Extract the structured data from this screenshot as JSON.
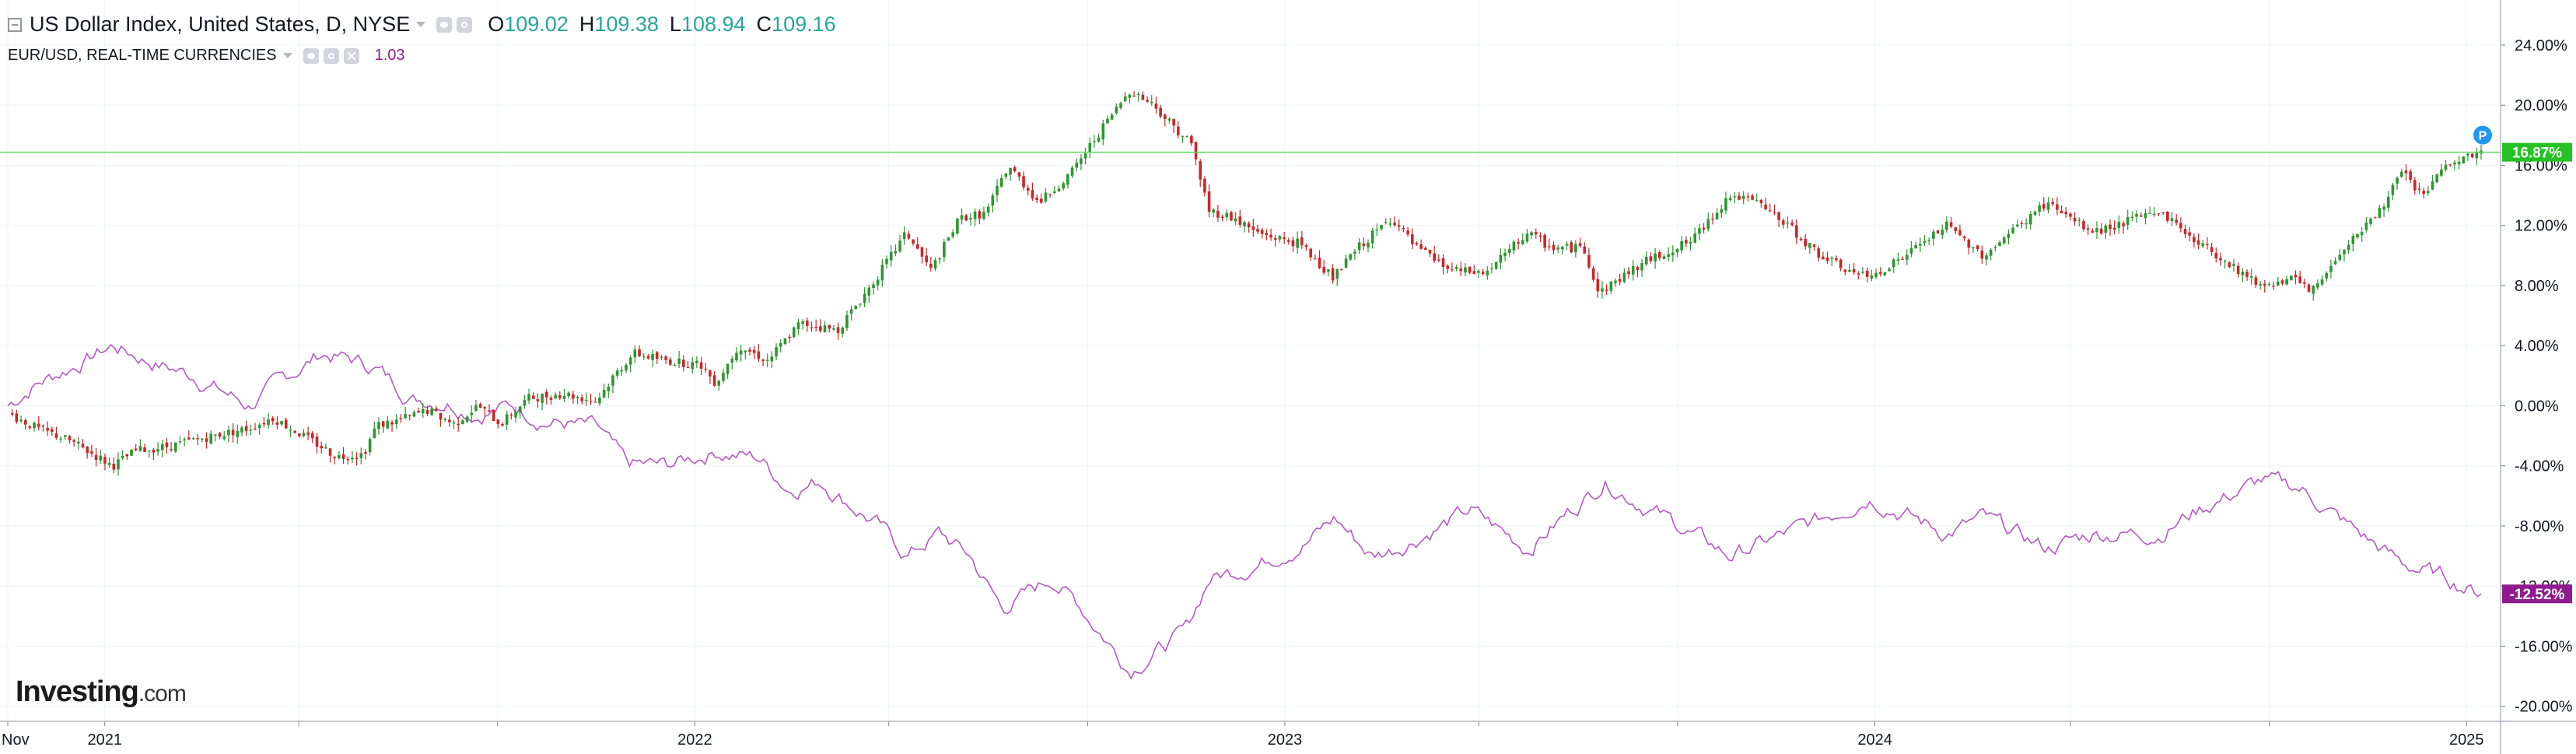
{
  "legend": {
    "main_title": "US Dollar Index, United States, D, NYSE",
    "o_label": "O",
    "o_value": "109.02",
    "h_label": "H",
    "h_value": "109.38",
    "l_label": "L",
    "l_value": "108.94",
    "c_label": "C",
    "c_value": "109.16",
    "compare_title": "EUR/USD, REAL-TIME CURRENCIES",
    "compare_value": "1.03"
  },
  "logo": {
    "text": "Investing",
    "suffix": ".com"
  },
  "colors": {
    "up": "#2e9632",
    "down": "#c62828",
    "compare_line": "#b35bc0",
    "current_line": "#5ed85e",
    "dxy_badge": "#24c224",
    "eur_badge": "#8e1c8e",
    "marker": "#2196f3",
    "grid": "#f0f3fa",
    "axis": "#787b86"
  },
  "chart_data": {
    "type": "line",
    "y_axis": {
      "unit": "%",
      "range": [
        -21,
        27
      ],
      "ticks": [
        24,
        20,
        16,
        12,
        8,
        4,
        0,
        -4,
        -8,
        -12,
        -16,
        -20
      ],
      "tick_labels": [
        "24.00%",
        "20.00%",
        "16.00%",
        "12.00%",
        "8.00%",
        "4.00%",
        "0.00%",
        "-4.00%",
        "-8.00%",
        "-12.00%",
        "-16.00%",
        "-20.00%"
      ]
    },
    "x_axis": {
      "range": [
        "2020-11-02",
        "2025-01-10"
      ],
      "ticks": [
        "2020-11-02",
        "2021-01-01",
        "2022-01-01",
        "2023-01-01",
        "2024-01-01",
        "2025-01-01"
      ],
      "tick_labels": [
        "Nov",
        "2021",
        "2022",
        "2023",
        "2024",
        "2025"
      ],
      "minor_ticks": [
        "2021-05-01",
        "2021-09-01",
        "2022-05-01",
        "2022-09-01",
        "2023-05-01",
        "2023-09-01",
        "2024-05-01",
        "2024-09-01"
      ]
    },
    "series": [
      {
        "name": "US Dollar Index",
        "style": "candlestick",
        "points": [
          [
            "2020-11-02",
            -0.5
          ],
          [
            "2020-11-20",
            -1.5
          ],
          [
            "2020-12-10",
            -2.3
          ],
          [
            "2021-01-06",
            -4.0
          ],
          [
            "2021-01-20",
            -3.0
          ],
          [
            "2021-02-10",
            -2.7
          ],
          [
            "2021-03-01",
            -2.2
          ],
          [
            "2021-03-31",
            -1.5
          ],
          [
            "2021-04-15",
            -0.8
          ],
          [
            "2021-05-10",
            -2.4
          ],
          [
            "2021-05-25",
            -3.4
          ],
          [
            "2021-06-10",
            -3.2
          ],
          [
            "2021-06-18",
            -1.3
          ],
          [
            "2021-07-01",
            -1.0
          ],
          [
            "2021-07-20",
            -0.3
          ],
          [
            "2021-08-05",
            -1.2
          ],
          [
            "2021-08-20",
            0.0
          ],
          [
            "2021-09-03",
            -1.2
          ],
          [
            "2021-09-20",
            0.5
          ],
          [
            "2021-10-12",
            0.8
          ],
          [
            "2021-11-01",
            0.3
          ],
          [
            "2021-11-12",
            2.0
          ],
          [
            "2021-11-24",
            3.5
          ],
          [
            "2021-12-15",
            3.0
          ],
          [
            "2022-01-05",
            2.7
          ],
          [
            "2022-01-14",
            1.5
          ],
          [
            "2022-01-28",
            4.0
          ],
          [
            "2022-02-15",
            3.0
          ],
          [
            "2022-03-07",
            5.5
          ],
          [
            "2022-03-30",
            5.0
          ],
          [
            "2022-04-20",
            8.0
          ],
          [
            "2022-05-12",
            11.5
          ],
          [
            "2022-05-27",
            9.0
          ],
          [
            "2022-06-14",
            12.5
          ],
          [
            "2022-06-30",
            12.8
          ],
          [
            "2022-07-14",
            16.0
          ],
          [
            "2022-08-02",
            13.5
          ],
          [
            "2022-08-22",
            15.5
          ],
          [
            "2022-09-07",
            18.0
          ],
          [
            "2022-09-27",
            21.0
          ],
          [
            "2022-10-12",
            20.0
          ],
          [
            "2022-10-25",
            18.5
          ],
          [
            "2022-11-04",
            17.5
          ],
          [
            "2022-11-15",
            13.0
          ],
          [
            "2022-11-30",
            12.5
          ],
          [
            "2022-12-15",
            11.5
          ],
          [
            "2023-01-10",
            10.8
          ],
          [
            "2023-01-31",
            8.5
          ],
          [
            "2023-02-15",
            10.5
          ],
          [
            "2023-03-08",
            12.5
          ],
          [
            "2023-03-23",
            10.5
          ],
          [
            "2023-04-14",
            9.0
          ],
          [
            "2023-05-05",
            8.8
          ],
          [
            "2023-05-31",
            11.5
          ],
          [
            "2023-06-15",
            10.5
          ],
          [
            "2023-07-05",
            10.5
          ],
          [
            "2023-07-14",
            7.5
          ],
          [
            "2023-08-10",
            9.5
          ],
          [
            "2023-09-10",
            11.0
          ],
          [
            "2023-10-03",
            14.0
          ],
          [
            "2023-10-20",
            13.5
          ],
          [
            "2023-11-08",
            12.0
          ],
          [
            "2023-11-28",
            10.0
          ],
          [
            "2023-12-15",
            9.0
          ],
          [
            "2023-12-28",
            8.5
          ],
          [
            "2024-01-20",
            10.0
          ],
          [
            "2024-02-14",
            12.0
          ],
          [
            "2024-03-08",
            10.0
          ],
          [
            "2024-04-16",
            13.5
          ],
          [
            "2024-05-15",
            11.5
          ],
          [
            "2024-06-25",
            13.0
          ],
          [
            "2024-07-17",
            11.0
          ],
          [
            "2024-08-27",
            8.0
          ],
          [
            "2024-09-15",
            8.5
          ],
          [
            "2024-09-27",
            7.5
          ],
          [
            "2024-10-20",
            11.0
          ],
          [
            "2024-11-05",
            12.5
          ],
          [
            "2024-11-22",
            15.5
          ],
          [
            "2024-12-05",
            14.0
          ],
          [
            "2024-12-20",
            16.0
          ],
          [
            "2025-01-10",
            16.87
          ]
        ],
        "last_value_label": "16.87%"
      },
      {
        "name": "EUR/USD",
        "style": "line",
        "points": [
          [
            "2020-11-02",
            0.0
          ],
          [
            "2020-11-20",
            1.5
          ],
          [
            "2020-12-10",
            2.5
          ],
          [
            "2021-01-06",
            4.0
          ],
          [
            "2021-01-28",
            3.0
          ],
          [
            "2021-02-25",
            2.0
          ],
          [
            "2021-03-31",
            0.0
          ],
          [
            "2021-04-25",
            2.0
          ],
          [
            "2021-05-15",
            3.5
          ],
          [
            "2021-06-05",
            3.0
          ],
          [
            "2021-06-18",
            2.5
          ],
          [
            "2021-07-10",
            0.5
          ],
          [
            "2021-08-01",
            0.3
          ],
          [
            "2021-08-20",
            -0.5
          ],
          [
            "2021-09-10",
            0.0
          ],
          [
            "2021-10-01",
            -1.0
          ],
          [
            "2021-11-01",
            -1.5
          ],
          [
            "2021-11-20",
            -4.0
          ],
          [
            "2021-12-15",
            -4.0
          ],
          [
            "2022-01-14",
            -3.0
          ],
          [
            "2022-02-10",
            -3.5
          ],
          [
            "2022-02-28",
            -5.5
          ],
          [
            "2022-03-20",
            -5.0
          ],
          [
            "2022-04-25",
            -8.0
          ],
          [
            "2022-05-12",
            -10.0
          ],
          [
            "2022-06-01",
            -8.5
          ],
          [
            "2022-06-20",
            -10.0
          ],
          [
            "2022-07-10",
            -13.5
          ],
          [
            "2022-08-10",
            -11.5
          ],
          [
            "2022-08-25",
            -13.0
          ],
          [
            "2022-09-27",
            -17.5
          ],
          [
            "2022-10-18",
            -16.0
          ],
          [
            "2022-11-01",
            -15.0
          ],
          [
            "2022-11-15",
            -11.5
          ],
          [
            "2022-12-15",
            -10.5
          ],
          [
            "2023-01-15",
            -9.0
          ],
          [
            "2023-02-01",
            -7.5
          ],
          [
            "2023-02-24",
            -10.0
          ],
          [
            "2023-03-10",
            -9.5
          ],
          [
            "2023-04-26",
            -7.0
          ],
          [
            "2023-05-31",
            -9.5
          ],
          [
            "2023-07-18",
            -5.0
          ],
          [
            "2023-08-25",
            -7.5
          ],
          [
            "2023-10-03",
            -10.0
          ],
          [
            "2023-11-20",
            -8.0
          ],
          [
            "2023-12-28",
            -6.0
          ],
          [
            "2024-02-14",
            -8.5
          ],
          [
            "2024-03-08",
            -7.5
          ],
          [
            "2024-04-16",
            -9.5
          ],
          [
            "2024-05-15",
            -8.5
          ],
          [
            "2024-06-25",
            -8.5
          ],
          [
            "2024-07-17",
            -7.0
          ],
          [
            "2024-08-27",
            -5.0
          ],
          [
            "2024-09-20",
            -5.5
          ],
          [
            "2024-10-20",
            -8.0
          ],
          [
            "2024-11-22",
            -10.5
          ],
          [
            "2024-12-20",
            -11.5
          ],
          [
            "2025-01-10",
            -12.52
          ]
        ],
        "last_value_label": "-12.52%"
      }
    ],
    "current_level": 16.87,
    "marker_label": "P",
    "grid": true
  }
}
